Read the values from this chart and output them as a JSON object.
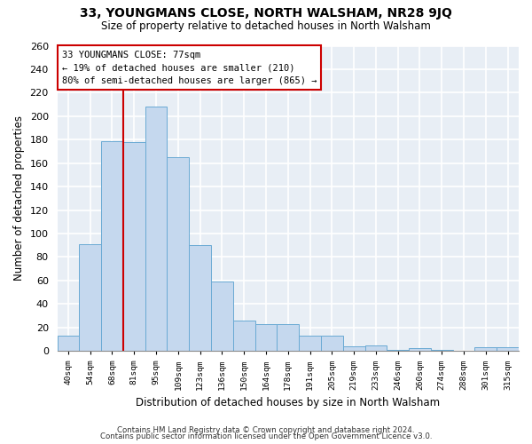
{
  "title": "33, YOUNGMANS CLOSE, NORTH WALSHAM, NR28 9JQ",
  "subtitle": "Size of property relative to detached houses in North Walsham",
  "xlabel": "Distribution of detached houses by size in North Walsham",
  "ylabel": "Number of detached properties",
  "categories": [
    "40sqm",
    "54sqm",
    "68sqm",
    "81sqm",
    "95sqm",
    "109sqm",
    "123sqm",
    "136sqm",
    "150sqm",
    "164sqm",
    "178sqm",
    "191sqm",
    "205sqm",
    "219sqm",
    "233sqm",
    "246sqm",
    "260sqm",
    "274sqm",
    "288sqm",
    "301sqm",
    "315sqm"
  ],
  "values": [
    13,
    91,
    179,
    178,
    208,
    165,
    90,
    59,
    26,
    23,
    23,
    13,
    13,
    4,
    5,
    1,
    2,
    1,
    0,
    3,
    3
  ],
  "bar_color": "#c5d8ee",
  "bar_edge_color": "#6aaad4",
  "vline_color": "#cc0000",
  "annotation_line1": "33 YOUNGMANS CLOSE: 77sqm",
  "annotation_line2": "← 19% of detached houses are smaller (210)",
  "annotation_line3": "80% of semi-detached houses are larger (865) →",
  "annotation_box_color": "white",
  "annotation_box_edge": "#cc0000",
  "ylim": [
    0,
    260
  ],
  "yticks": [
    0,
    20,
    40,
    60,
    80,
    100,
    120,
    140,
    160,
    180,
    200,
    220,
    240,
    260
  ],
  "footer1": "Contains HM Land Registry data © Crown copyright and database right 2024.",
  "footer2": "Contains public sector information licensed under the Open Government Licence v3.0.",
  "bg_color": "#e8eef5"
}
